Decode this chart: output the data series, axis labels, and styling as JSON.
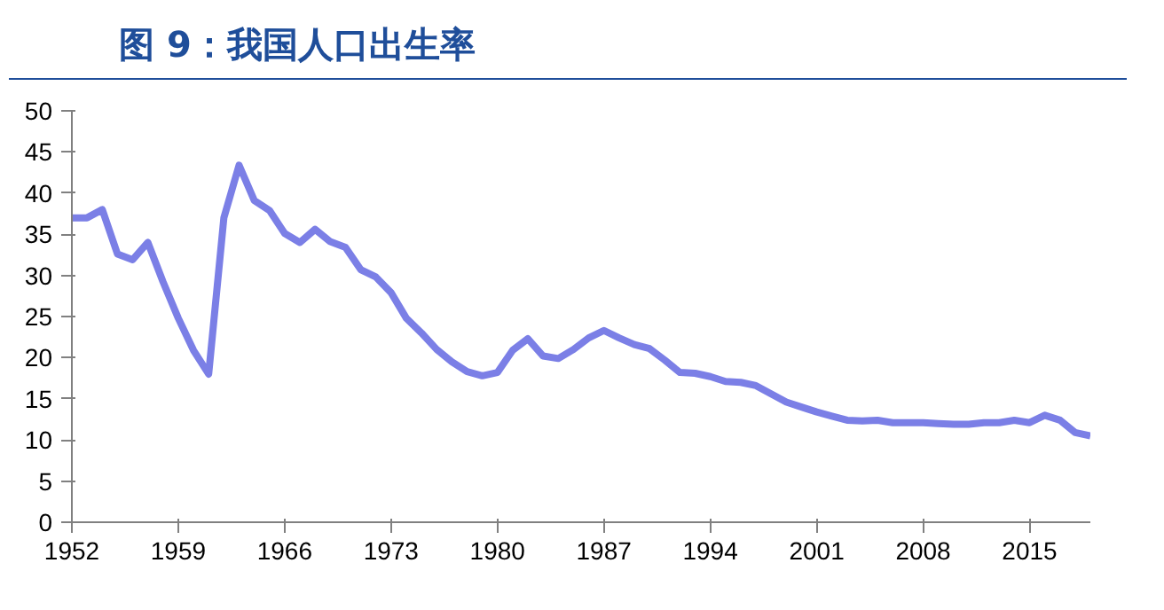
{
  "chart_data": {
    "type": "line",
    "title": "图 9：我国人口出生率",
    "x": [
      1952,
      1953,
      1954,
      1955,
      1956,
      1957,
      1958,
      1959,
      1960,
      1961,
      1962,
      1963,
      1964,
      1965,
      1966,
      1967,
      1968,
      1969,
      1970,
      1971,
      1972,
      1973,
      1974,
      1975,
      1976,
      1977,
      1978,
      1979,
      1980,
      1981,
      1982,
      1983,
      1984,
      1985,
      1986,
      1987,
      1988,
      1989,
      1990,
      1991,
      1992,
      1993,
      1994,
      1995,
      1996,
      1997,
      1998,
      1999,
      2000,
      2001,
      2002,
      2003,
      2004,
      2005,
      2006,
      2007,
      2008,
      2009,
      2010,
      2011,
      2012,
      2013,
      2014,
      2015,
      2016,
      2017,
      2018,
      2019
    ],
    "series": [
      {
        "color": "#7b7fe6",
        "values": [
          37.0,
          37.0,
          38.0,
          32.6,
          31.9,
          34.0,
          29.2,
          24.8,
          20.9,
          18.0,
          37.0,
          43.4,
          39.1,
          37.9,
          35.1,
          34.0,
          35.6,
          34.1,
          33.4,
          30.7,
          29.8,
          27.9,
          24.8,
          23.0,
          21.0,
          19.5,
          18.3,
          17.8,
          18.2,
          20.9,
          22.3,
          20.2,
          19.9,
          21.0,
          22.4,
          23.3,
          22.4,
          21.6,
          21.1,
          19.7,
          18.2,
          18.1,
          17.7,
          17.1,
          17.0,
          16.6,
          15.6,
          14.6,
          14.0,
          13.4,
          12.9,
          12.4,
          12.3,
          12.4,
          12.1,
          12.1,
          12.1,
          12.0,
          11.9,
          11.9,
          12.1,
          12.1,
          12.4,
          12.1,
          13.0,
          12.4,
          10.9,
          10.5
        ]
      }
    ],
    "xlim": [
      1952,
      2019
    ],
    "xticks": [
      1952,
      1959,
      1966,
      1973,
      1980,
      1987,
      1994,
      2001,
      2008,
      2015
    ],
    "ylim": [
      0,
      50
    ],
    "yticks": [
      0,
      5,
      10,
      15,
      20,
      25,
      30,
      35,
      40,
      45,
      50
    ],
    "grid": false,
    "line_style": "solid",
    "marker": "none"
  }
}
